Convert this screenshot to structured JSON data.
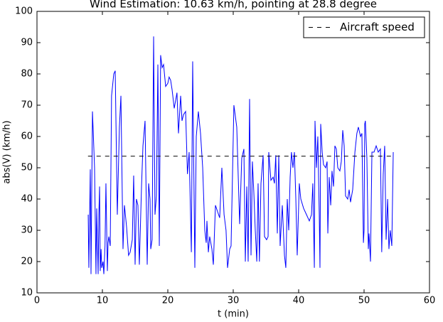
{
  "chart_data": {
    "type": "line",
    "title": "Wind Estimation: 10.63 km/h, pointing at 28.8 degree",
    "x_label": "t (min)",
    "y_label": "abs(V) (km/h)",
    "xlim": [
      0,
      60
    ],
    "xticks": [
      0,
      10,
      20,
      30,
      40,
      50,
      60
    ],
    "ylim": [
      10,
      100
    ],
    "yticks": [
      10,
      20,
      30,
      40,
      50,
      60,
      70,
      80,
      90,
      100
    ],
    "grid": false,
    "legend": "upper right",
    "series": [
      {
        "color": "#0000ff",
        "dash": false,
        "x": [
          7.83,
          7.93,
          8.15,
          8.26,
          8.48,
          8.59,
          8.8,
          9.02,
          9.13,
          9.35,
          9.46,
          9.57,
          9.67,
          9.8,
          9.9,
          10.1,
          10.22,
          10.4,
          10.54,
          10.76,
          10.87,
          10.98,
          11.2,
          11.4,
          11.74,
          11.96,
          12.28,
          12.6,
          12.83,
          13.15,
          13.37,
          13.7,
          14.0,
          14.24,
          14.57,
          14.78,
          15.0,
          15.2,
          15.43,
          15.65,
          15.98,
          16.2,
          16.52,
          16.85,
          17.07,
          17.28,
          17.39,
          17.6,
          17.83,
          18.04,
          18.26,
          18.48,
          18.7,
          18.9,
          19.13,
          19.35,
          19.67,
          20.0,
          20.2,
          20.43,
          20.65,
          20.98,
          21.4,
          21.63,
          21.96,
          22.17,
          22.4,
          22.72,
          23.0,
          23.26,
          23.6,
          23.8,
          24.13,
          24.35,
          24.67,
          25.0,
          25.33,
          25.65,
          25.87,
          25.98,
          26.2,
          26.4,
          26.74,
          26.96,
          27.28,
          27.6,
          27.93,
          28.26,
          28.6,
          28.9,
          29.13,
          29.46,
          29.67,
          30.1,
          30.54,
          30.98,
          31.3,
          31.63,
          31.85,
          32.07,
          32.28,
          32.5,
          32.72,
          32.93,
          33.15,
          33.37,
          33.6,
          33.8,
          34.0,
          34.24,
          34.57,
          34.78,
          35.1,
          35.33,
          35.43,
          35.76,
          36.1,
          36.3,
          36.5,
          36.74,
          36.96,
          37.17,
          37.5,
          37.83,
          38.04,
          38.26,
          38.48,
          38.7,
          38.9,
          39.13,
          39.35,
          39.57,
          39.78,
          40.1,
          40.33,
          40.76,
          41.2,
          41.63,
          41.96,
          42.17,
          42.4,
          42.5,
          42.72,
          42.93,
          43.15,
          43.26,
          43.37,
          43.6,
          43.8,
          44.13,
          44.35,
          44.46,
          44.67,
          44.9,
          45.1,
          45.33,
          45.54,
          45.76,
          45.98,
          46.3,
          46.52,
          46.74,
          46.96,
          47.17,
          47.5,
          47.72,
          47.93,
          48.26,
          48.6,
          48.9,
          49.13,
          49.46,
          49.67,
          49.9,
          50.0,
          50.1,
          50.2,
          50.43,
          50.65,
          50.76,
          50.98,
          51.2,
          51.52,
          51.85,
          52.17,
          52.5,
          52.7,
          52.93,
          53.15,
          53.37,
          53.6,
          53.8,
          54.0,
          54.24,
          54.46
        ],
        "values": [
          35,
          18,
          49.5,
          16,
          68,
          62,
          50,
          16,
          37,
          16,
          35,
          44,
          17,
          24,
          18,
          20,
          16,
          25,
          45,
          17,
          26,
          28,
          25,
          73,
          80,
          81,
          35,
          63,
          73,
          24,
          38,
          31,
          22,
          23,
          27,
          47.5,
          19,
          40,
          38,
          19,
          44,
          57,
          65,
          19,
          45,
          40,
          24,
          27,
          92,
          35,
          41,
          83,
          25,
          86,
          82,
          83,
          76,
          77,
          79,
          78,
          75,
          69,
          74,
          61,
          73,
          65,
          67,
          68,
          48,
          55,
          23,
          84,
          18,
          60,
          68,
          61,
          50,
          30,
          26,
          33,
          23,
          28,
          24,
          19,
          38,
          36,
          34,
          50,
          35,
          30,
          18,
          24,
          25,
          70,
          63,
          32,
          53,
          56,
          20,
          44,
          20,
          72,
          22,
          52,
          42,
          30,
          20,
          45,
          20,
          45,
          54,
          28,
          27,
          28,
          55,
          46,
          47,
          45,
          54,
          29,
          54,
          25,
          38,
          22,
          18,
          40,
          30,
          47,
          55,
          50,
          55,
          40,
          22,
          45,
          40,
          37,
          35,
          33,
          35,
          45,
          18,
          65,
          50,
          60,
          35,
          18,
          64,
          55,
          51,
          50,
          52,
          29,
          47,
          38,
          49,
          44,
          57,
          56,
          50,
          49,
          52,
          62,
          57,
          41,
          40,
          43,
          39,
          43,
          55,
          61,
          63,
          60,
          61,
          26,
          30,
          64,
          65,
          53,
          24,
          29,
          20,
          55,
          55,
          57,
          55,
          56,
          23,
          48,
          57,
          27,
          40,
          24,
          30,
          25,
          55
        ]
      },
      {
        "name": "Aircraft speed",
        "color": "#000000",
        "dash": true,
        "x": [
          7.8,
          54.5
        ],
        "values": [
          53.7,
          53.7
        ]
      }
    ]
  }
}
